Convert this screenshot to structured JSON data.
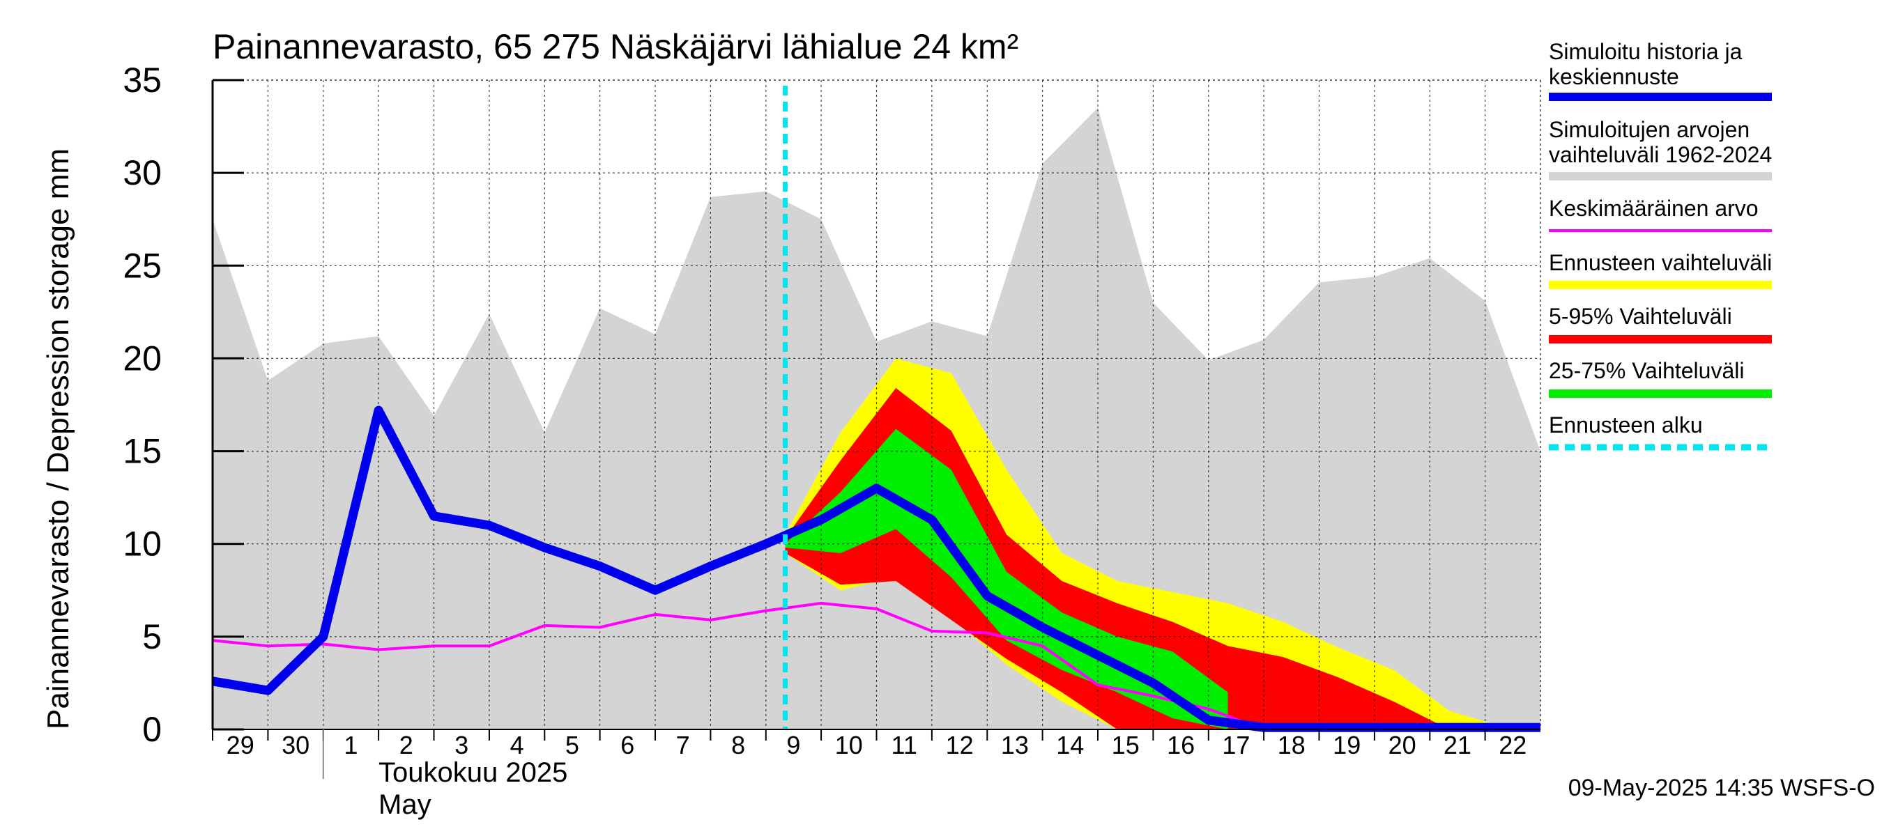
{
  "chart_data": {
    "type": "area",
    "title": "Painannevarasto, 65 275 Näskäjärvi lähialue 24 km²",
    "ylabel": "Painannevarasto / Depression storage    mm",
    "ylim": [
      0,
      35
    ],
    "yticks": [
      "0",
      "5",
      "10",
      "15",
      "20",
      "25",
      "30",
      "35"
    ],
    "x_day_labels": [
      "29",
      "30",
      "1",
      "2",
      "3",
      "4",
      "5",
      "6",
      "7",
      "8",
      "9",
      "10",
      "11",
      "12",
      "13",
      "14",
      "15",
      "16",
      "17",
      "18",
      "19",
      "20",
      "21",
      "22"
    ],
    "month_label_fi": "Toukokuu  2025",
    "month_label_en": "May",
    "grid": true,
    "legend_position": "right",
    "footer": "09-May-2025 14:35 WSFS-O",
    "forecast_start_day": 10.35,
    "x_days": [
      0,
      1,
      2,
      3,
      4,
      5,
      6,
      7,
      8,
      9,
      10,
      11,
      12,
      13,
      14,
      15,
      16,
      17,
      18,
      19,
      20,
      21,
      22,
      23,
      24
    ],
    "series": [
      {
        "name": "Simuloitujen arvojen vaihteluväli 1962-2024",
        "role": "history_range",
        "color": "#d4d4d4",
        "values": [
          27.5,
          18.8,
          20.8,
          21.2,
          16.9,
          22.4,
          16.0,
          22.7,
          21.3,
          28.7,
          29.0,
          27.5,
          20.9,
          22.0,
          21.2,
          30.5,
          33.5,
          23.0,
          19.9,
          21.0,
          24.1,
          24.4,
          25.4,
          23.1,
          15.0
        ]
      },
      {
        "name": "Ennusteen vaihteluväli",
        "role": "forecast_range",
        "color": "#ffff00",
        "x": [
          10.35,
          11.35,
          12.35,
          13.35,
          14.35,
          15.35,
          16.35,
          17.35,
          18.35,
          19.35,
          20.35,
          21.35,
          22.35,
          23.35
        ],
        "upper": [
          10.5,
          16.0,
          20.0,
          19.2,
          14.0,
          9.5,
          8.0,
          7.4,
          6.8,
          5.8,
          4.4,
          3.2,
          1.0,
          0.1
        ],
        "lower": [
          9.5,
          7.5,
          8.2,
          6.0,
          3.5,
          1.5,
          0.0,
          0.0,
          0.0,
          0.0,
          0.0,
          0.0,
          0.0,
          0.0
        ]
      },
      {
        "name": "5-95% Vaihteluväli",
        "role": "p5_95",
        "color": "#ff0000",
        "x": [
          10.35,
          11.35,
          12.35,
          13.35,
          14.35,
          15.35,
          16.35,
          17.35,
          18.35,
          19.35,
          20.35,
          21.35,
          22.35,
          23.35
        ],
        "upper": [
          10.3,
          14.5,
          18.4,
          16.1,
          10.5,
          8.0,
          6.8,
          5.8,
          4.5,
          3.9,
          2.8,
          1.5,
          0.0,
          0.0
        ],
        "lower": [
          9.5,
          7.8,
          8.0,
          5.9,
          3.8,
          2.0,
          0.0,
          0.0,
          0.0,
          0.0,
          0.0,
          0.0,
          0.0,
          0.0
        ]
      },
      {
        "name": "25-75% Vaihteluväli",
        "role": "p25_75",
        "color": "#00ee00",
        "x": [
          10.35,
          11.35,
          12.35,
          13.35,
          14.35,
          15.35,
          16.35,
          17.35,
          18.35
        ],
        "upper": [
          10.0,
          12.8,
          16.2,
          14.0,
          8.5,
          6.3,
          5.0,
          4.2,
          2.0
        ],
        "lower": [
          9.8,
          9.5,
          10.8,
          8.2,
          4.8,
          3.2,
          2.0,
          0.6,
          0.0
        ]
      },
      {
        "name": "Keskimääräinen arvo",
        "role": "mean",
        "color": "#ff00ff",
        "values": [
          4.8,
          4.5,
          4.6,
          4.3,
          4.5,
          4.5,
          5.6,
          5.5,
          6.2,
          5.9,
          6.4,
          6.8,
          6.5,
          5.3,
          5.2,
          4.5,
          2.4,
          1.8,
          1.1,
          0.0,
          0.0,
          0.0,
          0.0,
          0.0,
          0.0
        ]
      },
      {
        "name": "Simuloitu historia ja keskiennuste",
        "role": "main",
        "color": "#0000ee",
        "values": [
          2.6,
          2.1,
          5.0,
          17.2,
          11.5,
          11.0,
          9.8,
          8.8,
          7.5,
          8.8,
          10.0,
          11.3,
          13.0,
          11.3,
          7.2,
          5.5,
          4.0,
          2.5,
          0.5,
          0.1,
          0.1,
          0.1,
          0.1,
          0.1,
          0.1
        ]
      }
    ]
  },
  "legend": [
    {
      "lines": [
        "Simuloitu historia ja",
        "keskiennuste"
      ],
      "color": "#0000ee",
      "style": "solid"
    },
    {
      "lines": [
        "Simuloitujen arvojen",
        "vaihteluväli 1962-2024"
      ],
      "color": "#d4d4d4",
      "style": "solid"
    },
    {
      "lines": [
        "Keskimääräinen arvo"
      ],
      "color": "#ff00ff",
      "style": "thin"
    },
    {
      "lines": [
        "Ennusteen vaihteluväli"
      ],
      "color": "#ffff00",
      "style": "solid"
    },
    {
      "lines": [
        "5-95% Vaihteluväli"
      ],
      "color": "#ff0000",
      "style": "solid"
    },
    {
      "lines": [
        "25-75% Vaihteluväli"
      ],
      "color": "#00ee00",
      "style": "solid"
    },
    {
      "lines": [
        "Ennusteen alku"
      ],
      "color": "#00e5ee",
      "style": "dashed"
    }
  ]
}
